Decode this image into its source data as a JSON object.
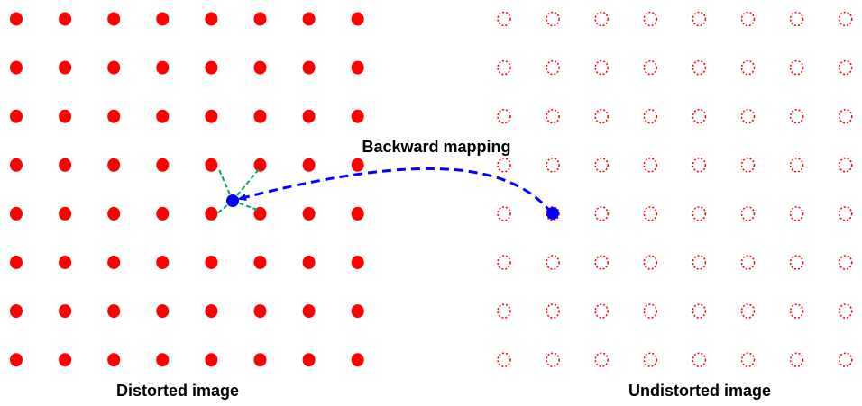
{
  "labels": {
    "distorted": "Distorted image",
    "undistorted": "Undistorted image",
    "mapping": "Backward mapping"
  },
  "grid": {
    "rows": 8,
    "cols": 8
  },
  "colors": {
    "grid_point": "#ff0000",
    "mapped_point": "#0000ff",
    "mapping_arrow": "#0000ff",
    "neighbor_lines": "#00a651",
    "text": "#000000"
  }
}
